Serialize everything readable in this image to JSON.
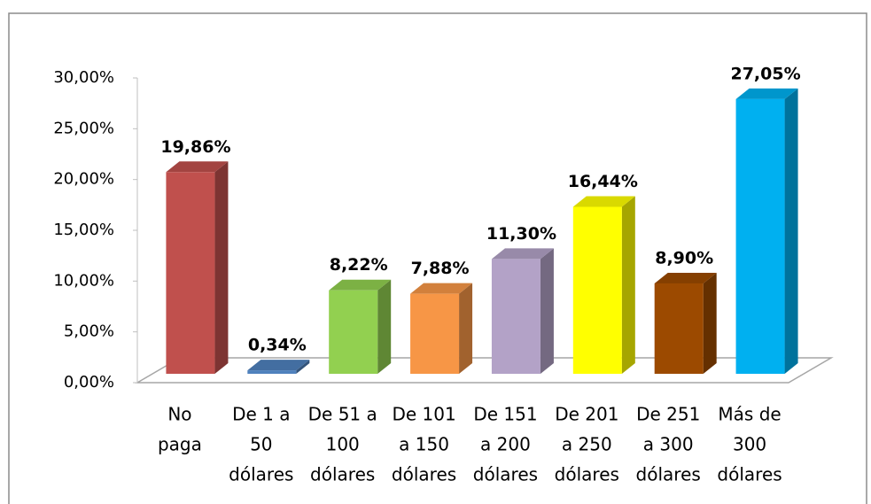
{
  "chart_data": {
    "type": "bar3d",
    "categories": [
      [
        "No",
        "paga"
      ],
      [
        "De 1 a",
        "50",
        "dólares"
      ],
      [
        "De 51 a",
        "100",
        "dólares"
      ],
      [
        "De 101",
        "a 150",
        "dólares"
      ],
      [
        "De 151",
        "a 200",
        "dólares"
      ],
      [
        "De 201",
        "a 250",
        "dólares"
      ],
      [
        "De 251",
        "a 300",
        "dólares"
      ],
      [
        "Más de",
        "300",
        "dólares"
      ]
    ],
    "values": [
      19.86,
      0.34,
      8.22,
      7.88,
      11.3,
      16.44,
      8.9,
      27.05
    ],
    "value_labels": [
      "19,86%",
      "0,34%",
      "8,22%",
      "7,88%",
      "11,30%",
      "16,44%",
      "8,90%",
      "27,05%"
    ],
    "colors": [
      "#c0504d",
      "#4f81bd",
      "#92d050",
      "#f79646",
      "#b3a2c7",
      "#ffff00",
      "#9c4a00",
      "#00b0f0"
    ],
    "ylim": [
      0,
      30
    ],
    "yticks": [
      {
        "value": 0,
        "label": "0,00%"
      },
      {
        "value": 5,
        "label": "5,00%"
      },
      {
        "value": 10,
        "label": "10,00%"
      },
      {
        "value": 15,
        "label": "15,00%"
      },
      {
        "value": 20,
        "label": "20,00%"
      },
      {
        "value": 25,
        "label": "25,00%"
      },
      {
        "value": 30,
        "label": "30,00%"
      }
    ],
    "grid": false
  }
}
